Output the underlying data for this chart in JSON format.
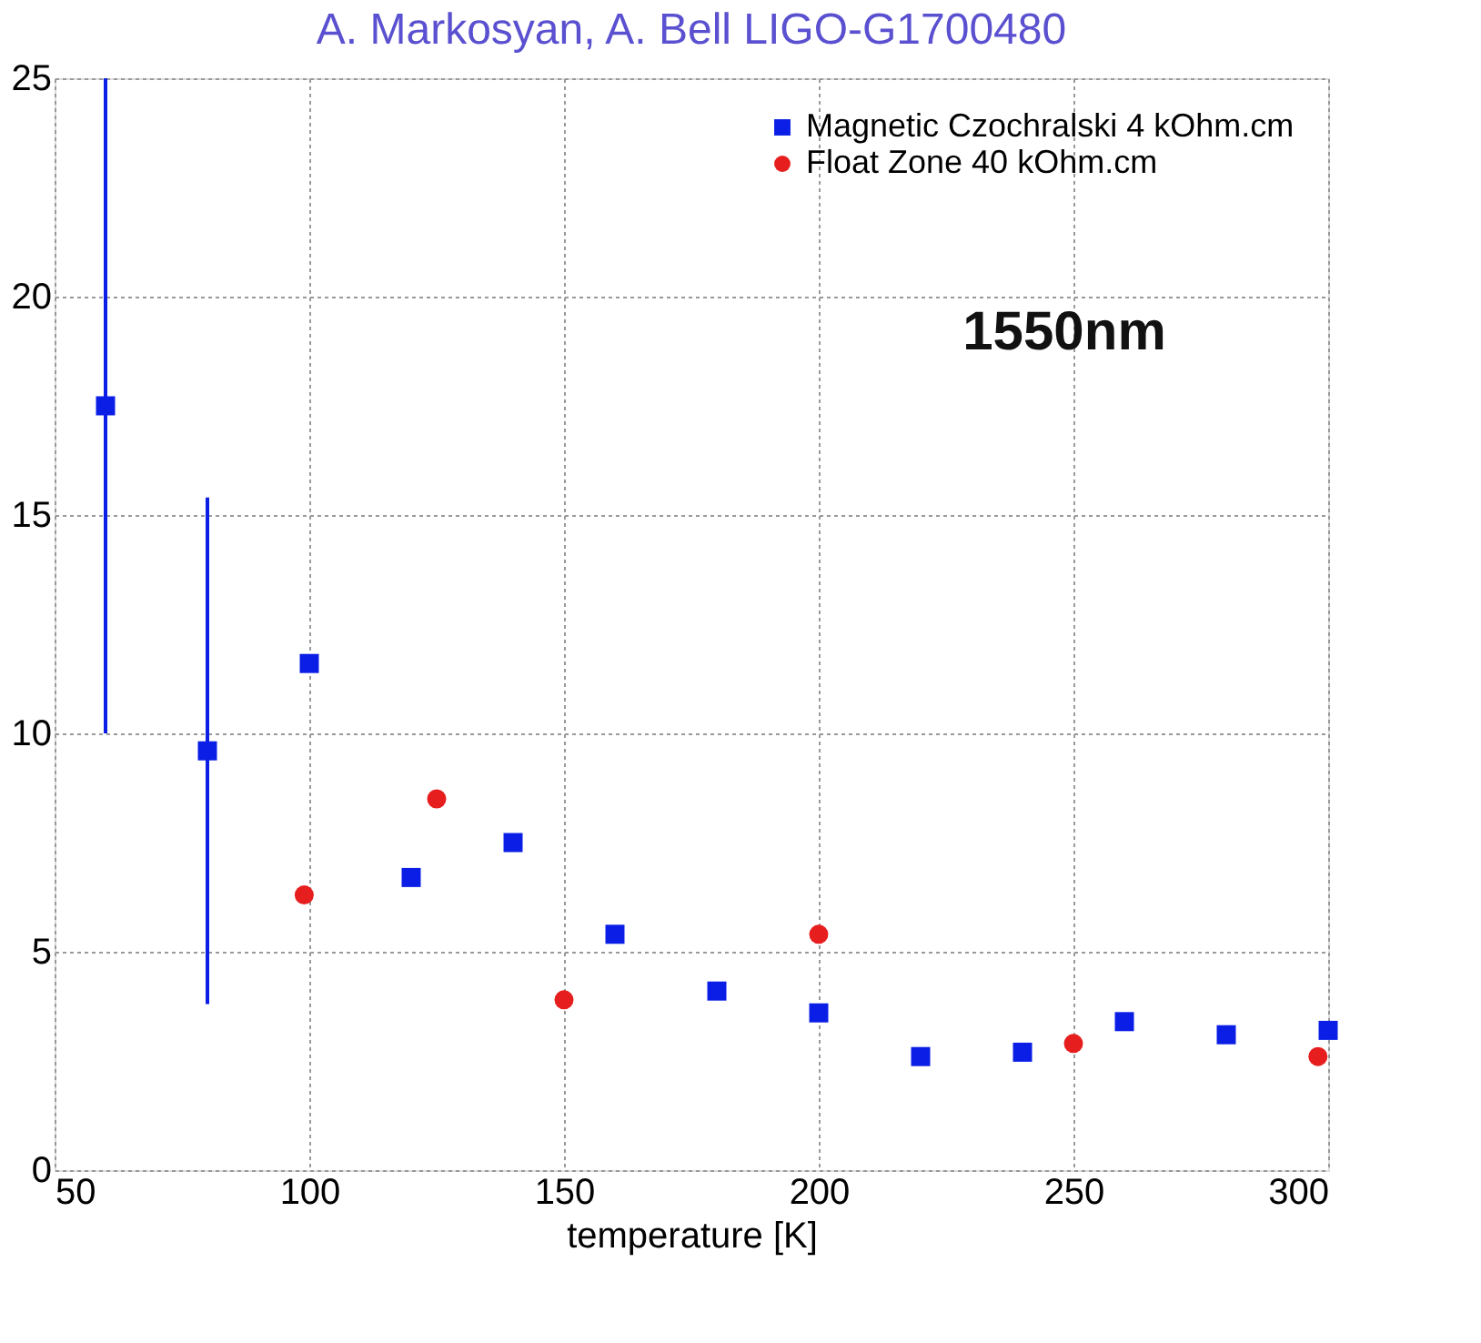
{
  "chart_data": {
    "type": "scatter",
    "title": "A. Markosyan, A. Bell LIGO-G1700480",
    "xlabel": "temperature [K]",
    "xlim": [
      50,
      300
    ],
    "xticks": [
      50,
      100,
      150,
      200,
      250,
      300
    ],
    "ylim": [
      0,
      25
    ],
    "yticks": [
      0,
      5,
      10,
      15,
      20,
      25
    ],
    "grid": true,
    "legend": "top right",
    "annotations": [
      "1550nm"
    ],
    "series": [
      {
        "name": "Magnetic Czochralski 4 kOhm.cm",
        "color": "#0a1ee6",
        "marker": "square",
        "x": [
          60,
          80,
          100,
          120,
          140,
          160,
          180,
          200,
          220,
          240,
          260,
          280,
          300
        ],
        "values": [
          17.5,
          9.6,
          11.6,
          6.7,
          7.5,
          5.4,
          4.1,
          3.6,
          2.6,
          2.7,
          3.4,
          3.1,
          3.2
        ],
        "errors": [
          [
            10,
            25
          ],
          [
            3.8,
            15.4
          ],
          null,
          null,
          null,
          null,
          null,
          null,
          null,
          null,
          null,
          null,
          null
        ]
      },
      {
        "name": "Float Zone 40 kOhm.cm",
        "color": "#e61e1e",
        "marker": "circle",
        "x": [
          99,
          125,
          150,
          200,
          250,
          298
        ],
        "values": [
          6.3,
          8.5,
          3.9,
          5.4,
          2.9,
          2.6
        ]
      }
    ]
  }
}
